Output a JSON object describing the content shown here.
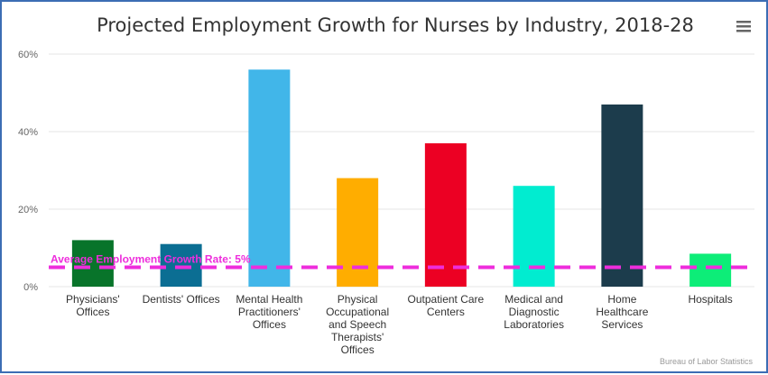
{
  "chart_data": {
    "type": "bar",
    "title": "Projected Employment Growth for Nurses by Industry, 2018-28",
    "categories": [
      [
        "Physicians'",
        "Offices"
      ],
      [
        "Dentists' Offices"
      ],
      [
        "Mental Health",
        "Practitioners'",
        "Offices"
      ],
      [
        "Physical",
        "Occupational",
        "and Speech",
        "Therapists'",
        "Offices"
      ],
      [
        "Outpatient Care",
        "Centers"
      ],
      [
        "Medical and",
        "Diagnostic",
        "Laboratories"
      ],
      [
        "Home",
        "Healthcare",
        "Services"
      ],
      [
        "Hospitals"
      ]
    ],
    "values": [
      12,
      11,
      56,
      28,
      37,
      26,
      47,
      8.5
    ],
    "colors": [
      "#08742a",
      "#0b6e93",
      "#41b6e9",
      "#ffad00",
      "#ec0023",
      "#01ecd0",
      "#1c3c4c",
      "#0ded78"
    ],
    "ylim": [
      0,
      60
    ],
    "yticks": [
      {
        "value": 0,
        "label": "0%"
      },
      {
        "value": 20,
        "label": "20%"
      },
      {
        "value": 40,
        "label": "40%"
      },
      {
        "value": 60,
        "label": "60%"
      }
    ],
    "xlabel": "",
    "ylabel": "",
    "grid": true,
    "reference_line": {
      "value": 5,
      "label": "Average Employment Growth Rate: 5%",
      "color": "#ee2ddc"
    },
    "credits": "Bureau of Labor Statistics"
  },
  "menu_icon": "hamburger-menu-icon"
}
